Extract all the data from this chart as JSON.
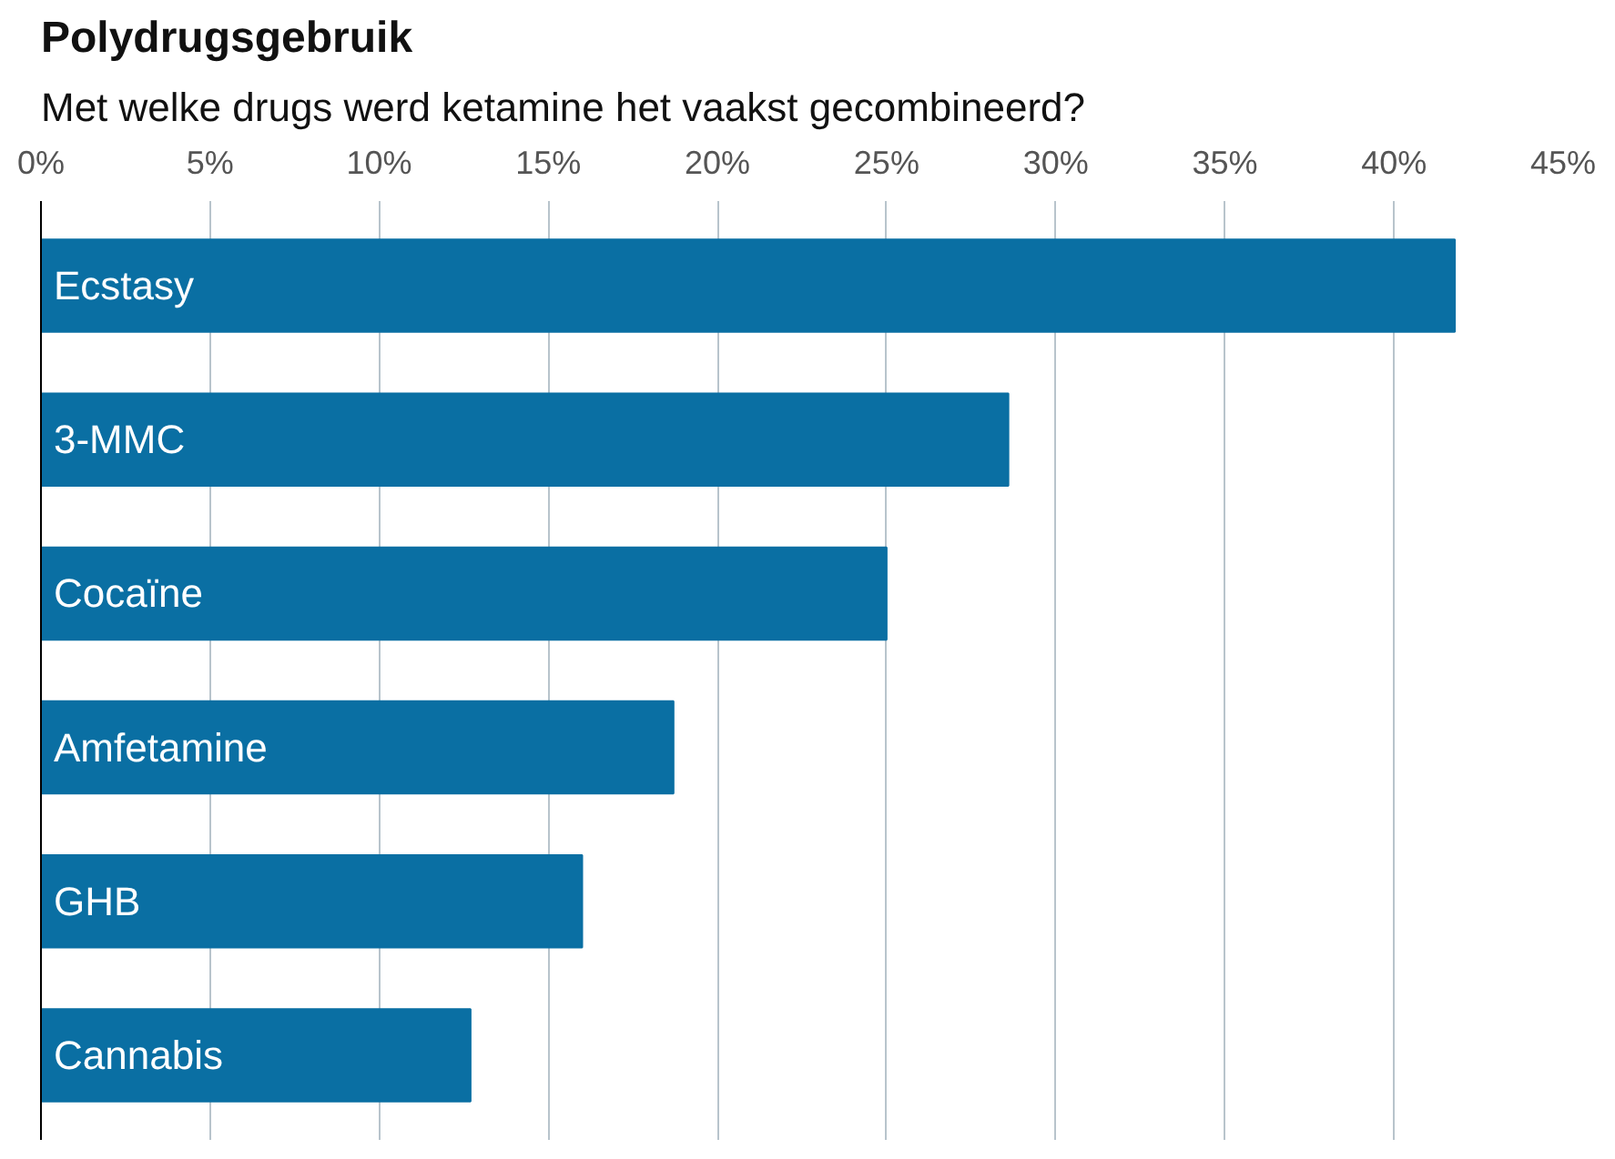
{
  "chart_data": {
    "type": "bar",
    "orientation": "horizontal",
    "title": "Polydrugsgebruik",
    "subtitle": "Met welke drugs werd ketamine het vaakst gecombineerd?",
    "categories": [
      "Ecstasy",
      "3‑MMC",
      "Cocaïne",
      "Amfetamine",
      "GHB",
      "Cannabis"
    ],
    "values": [
      41.8,
      28.6,
      25.0,
      18.7,
      16.0,
      12.7
    ],
    "color": "#0a6fa3",
    "xlim": [
      0,
      45
    ],
    "xticks": [
      {
        "value": 0,
        "label": "0%"
      },
      {
        "value": 5,
        "label": "5%"
      },
      {
        "value": 10,
        "label": "10%"
      },
      {
        "value": 15,
        "label": "15%"
      },
      {
        "value": 20,
        "label": "20%"
      },
      {
        "value": 25,
        "label": "25%"
      },
      {
        "value": 30,
        "label": "30%"
      },
      {
        "value": 35,
        "label": "35%"
      },
      {
        "value": 40,
        "label": "40%"
      },
      {
        "value": 45,
        "label": "45%"
      }
    ],
    "grid": "x",
    "tick_labels": "x"
  }
}
